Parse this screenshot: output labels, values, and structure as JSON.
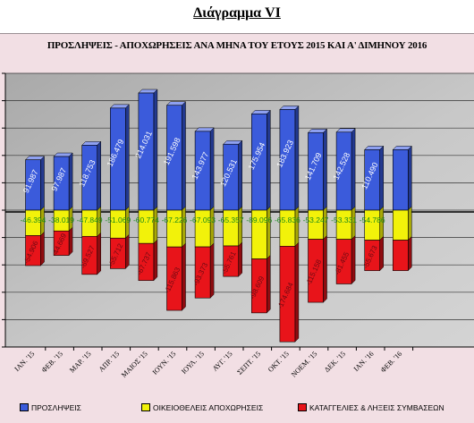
{
  "figure_title": "Διάγραμμα VI",
  "chart_data": {
    "type": "bar",
    "stacked": true,
    "title": "ΠΡΟΣΛΗΨΕΙΣ - ΑΠΟΧΩΡΗΣΕΙΣ ΑΝΑ ΜΗΝΑ ΤΟΥ ΕΤΟΥΣ 2015 ΚΑΙ Α' ΔΙΜΗΝΟΥ 2016",
    "categories": [
      "ΙΑΝ. '15",
      "ΦΕΒ. '15",
      "ΜΑΡ. '15",
      "ΑΠΡ. '15",
      "ΜΑΙΟΣ '15",
      "ΙΟΥΝ. '15",
      "ΙΟΥΛ. '15",
      "ΑΥΓ. '15",
      "ΣΕΠΤ. '15",
      "ΟΚΤ. '15",
      "ΝΟΕΜ. '15",
      "ΔΕΚ. '15",
      "ΙΑΝ. '16",
      "ΦΕΒ. '16"
    ],
    "series": [
      {
        "name": "ΠΡΟΣΛΗΨΕΙΣ",
        "color": "#3b5bdb",
        "values": [
          91987,
          97987,
          118753,
          186479,
          214031,
          191598,
          143977,
          120531,
          175954,
          183923,
          141709,
          142528,
          110490,
          110490
        ],
        "labels": [
          "91.987",
          "97.987",
          "118.753",
          "186.479",
          "214.031",
          "191.598",
          "143.977",
          "120.531",
          "175.954",
          "183.923",
          "141.709",
          "142.528",
          "110.490",
          ""
        ]
      },
      {
        "name": "ΟΙΚΕΙΟΘΕΛΕΙΣ ΑΠΟΧΩΡΗΣΕΙΣ",
        "color": "#f2f20a",
        "values": [
          -46394,
          -38019,
          -47849,
          -51069,
          -60774,
          -67226,
          -67093,
          -65357,
          -89096,
          -65836,
          -53247,
          -53331,
          -54786,
          -54786
        ],
        "labels": [
          "-46.394",
          "-38.019",
          "-47.849",
          "-51.069",
          "-60.774",
          "-67.226",
          "-67.093",
          "-65.357",
          "-89.096",
          "-65.836",
          "-53.247",
          "-53.331",
          "-54.786",
          ""
        ]
      },
      {
        "name": "ΚΑΤΑΓΓΕΛΙΕΣ & ΛΗΞΕΙΣ ΣΥΜΒΑΣΕΩΝ",
        "color": "#e8141a",
        "values": [
          -54906,
          -44669,
          -69527,
          -55712,
          -67737,
          -115863,
          -93373,
          -55761,
          -98609,
          -174684,
          -115158,
          -81455,
          -55673,
          -55673
        ],
        "labels": [
          "-54.906",
          "-44.669",
          "-69.527",
          "-55.712",
          "-67.737",
          "-115.863",
          "-93.373",
          "-55.761",
          "-98.609",
          "-174.684",
          "-115.158",
          "-81.455",
          "-55.673",
          ""
        ]
      }
    ],
    "ylim": [
      -250000,
      250000
    ],
    "grid": true,
    "legend": "bottom"
  }
}
